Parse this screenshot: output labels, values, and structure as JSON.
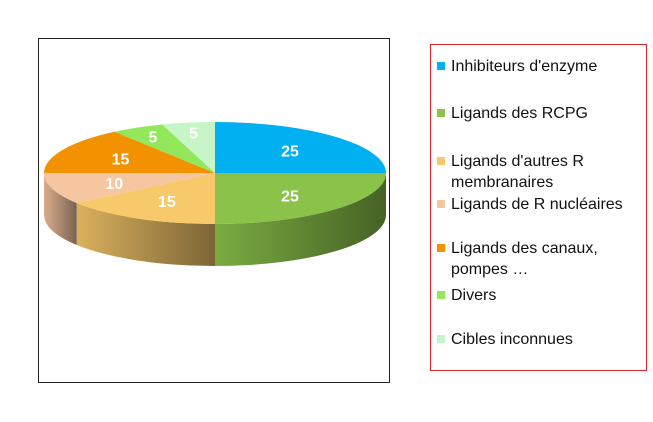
{
  "chart_data": {
    "type": "pie",
    "style": "3d",
    "title": "",
    "categories": [
      "Inhibiteurs d'enzyme",
      "Ligands des RCPG",
      "Ligands d'autres R membranaires",
      "Ligands de R nucléaires",
      "Ligands des canaux, pompes …",
      "Divers",
      "Cibles inconnues"
    ],
    "values": [
      25,
      25,
      15,
      10,
      15,
      5,
      5
    ],
    "data_labels": [
      "25",
      "25",
      "15",
      "10",
      "15",
      "5",
      "5"
    ],
    "colors": [
      "#00b0f0",
      "#8bc34a",
      "#f8c96b",
      "#f5c6a0",
      "#f39200",
      "#92e85a",
      "#c7f5c7"
    ],
    "legend_position": "right",
    "grid": false
  }
}
